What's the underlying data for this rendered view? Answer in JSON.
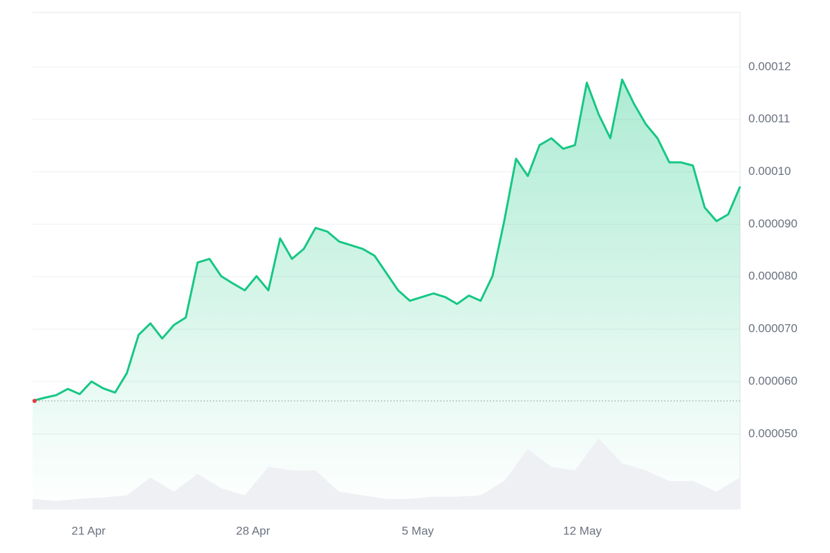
{
  "chart_data": {
    "type": "line",
    "series": [
      {
        "color": "#16c784",
        "values": [
          5.63e-05,
          5.69e-05,
          5.74e-05,
          5.86e-05,
          5.76e-05,
          6e-05,
          5.87e-05,
          5.79e-05,
          6.16e-05,
          6.89e-05,
          7.11e-05,
          6.82e-05,
          7.08e-05,
          7.22e-05,
          8.27e-05,
          8.34e-05,
          8.01e-05,
          7.87e-05,
          7.74e-05,
          8.01e-05,
          7.74e-05,
          8.73e-05,
          8.34e-05,
          8.53e-05,
          8.93e-05,
          8.86e-05,
          8.67e-05,
          8.6e-05,
          8.53e-05,
          8.4e-05,
          8.07e-05,
          7.74e-05,
          7.54e-05,
          7.61e-05,
          7.68e-05,
          7.61e-05,
          7.48e-05,
          7.64e-05,
          7.54e-05,
          8.01e-05,
          9.06e-05,
          0.0001025,
          9.92e-05,
          0.0001051,
          0.0001064,
          0.0001044,
          0.0001051,
          0.000117,
          0.000111,
          0.0001064,
          0.0001176,
          0.000113,
          0.0001091,
          0.0001064,
          0.0001018,
          0.0001018,
          0.0001012,
          9.32e-05,
          9.06e-05,
          9.19e-05,
          9.72e-05
        ]
      },
      {
        "color": "#eef0f4",
        "axis": "y2",
        "values": [
          15,
          12,
          15,
          17,
          20,
          45,
          25,
          50,
          30,
          20,
          60,
          55,
          55,
          25,
          20,
          15,
          15,
          18,
          18,
          20,
          40,
          85,
          60,
          55,
          100,
          65,
          55,
          40,
          40,
          25,
          45
        ]
      }
    ],
    "xlim": [
      0,
      60
    ],
    "xticks": [
      {
        "value": 4.75,
        "label": "21 Apr"
      },
      {
        "value": 18.7,
        "label": "28 Apr"
      },
      {
        "value": 32.67,
        "label": "5 May"
      },
      {
        "value": 46.63,
        "label": "12 May"
      }
    ],
    "ylim": [
      3.56e-05,
      0.0001304
    ],
    "yticks": [
      {
        "value": 5e-05,
        "label": "0.000050"
      },
      {
        "value": 6e-05,
        "label": "0.000060"
      },
      {
        "value": 7e-05,
        "label": "0.000070"
      },
      {
        "value": 8e-05,
        "label": "0.000080"
      },
      {
        "value": 9e-05,
        "label": "0.000090"
      },
      {
        "value": 0.0001,
        "label": "0.00010"
      },
      0.00011,
      0.00012
    ],
    "y2lim": [
      0,
      700
    ],
    "grid": true
  }
}
